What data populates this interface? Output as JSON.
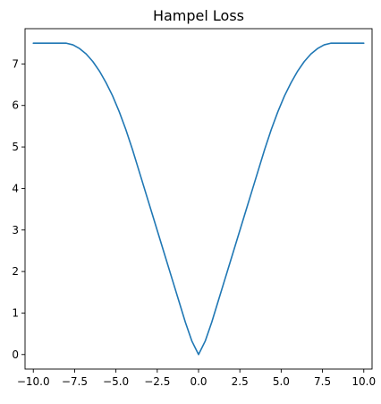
{
  "chart_data": {
    "type": "line",
    "title": "Hampel Loss",
    "xlabel": "",
    "ylabel": "",
    "xlim": [
      -10.5,
      10.5
    ],
    "ylim": [
      -0.35,
      7.85
    ],
    "grid": false,
    "x_ticks": [
      -10.0,
      -7.5,
      -5.0,
      -2.5,
      0.0,
      2.5,
      5.0,
      7.5,
      10.0
    ],
    "x_tick_labels": [
      "−10.0",
      "−7.5",
      "−5.0",
      "−2.5",
      "0.0",
      "2.5",
      "5.0",
      "7.5",
      "10.0"
    ],
    "y_ticks": [
      0,
      1,
      2,
      3,
      4,
      5,
      6,
      7
    ],
    "y_tick_labels": [
      "0",
      "1",
      "2",
      "3",
      "4",
      "5",
      "6",
      "7"
    ],
    "series": [
      {
        "color": "#1f77b4",
        "x": [
          -10.0,
          -9.6,
          -9.2,
          -8.8,
          -8.4,
          -8.0,
          -7.6,
          -7.2,
          -6.8,
          -6.4,
          -6.0,
          -5.6,
          -5.2,
          -4.8,
          -4.4,
          -4.0,
          -3.6,
          -3.2,
          -2.8,
          -2.4,
          -2.0,
          -1.6,
          -1.2,
          -0.8,
          -0.4,
          0.0,
          0.4,
          0.8,
          1.2,
          1.6,
          2.0,
          2.4,
          2.8,
          3.2,
          3.6,
          4.0,
          4.4,
          4.8,
          5.2,
          5.6,
          6.0,
          6.4,
          6.8,
          7.2,
          7.6,
          8.0,
          8.4,
          8.8,
          9.2,
          9.6,
          10.0
        ],
        "y": [
          7.5,
          7.5,
          7.5,
          7.5,
          7.5,
          7.5,
          7.46,
          7.37,
          7.24,
          7.06,
          6.83,
          6.55,
          6.23,
          5.85,
          5.42,
          4.94,
          4.42,
          3.9,
          3.38,
          2.86,
          2.34,
          1.82,
          1.3,
          0.78,
          0.32,
          0.0,
          0.32,
          0.78,
          1.3,
          1.82,
          2.34,
          2.86,
          3.38,
          3.9,
          4.42,
          4.94,
          5.42,
          5.85,
          6.23,
          6.55,
          6.83,
          7.06,
          7.24,
          7.37,
          7.46,
          7.5,
          7.5,
          7.5,
          7.5,
          7.5,
          7.5
        ]
      }
    ]
  }
}
